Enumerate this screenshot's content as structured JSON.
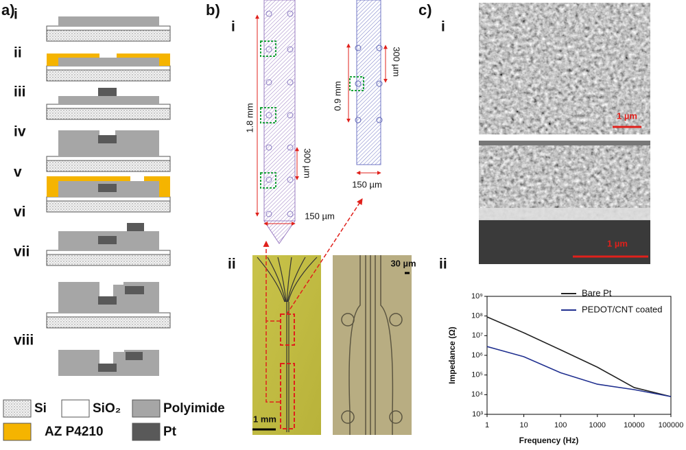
{
  "panel_a": {
    "label": "a)",
    "steps": [
      "i",
      "ii",
      "iii",
      "iv",
      "v",
      "vi",
      "vii",
      "viii"
    ],
    "legend": [
      "Si",
      "SiO₂",
      "Polyimide",
      "AZ P4210",
      "Pt"
    ]
  },
  "panel_b": {
    "label": "b)",
    "sub_i": "i",
    "dims_long": {
      "length": "1.8 mm",
      "pitch": "300 µm",
      "width": "150 µm"
    },
    "dims_short": {
      "length": "0.9 mm",
      "pitch": "300 µm",
      "width": "150 µm"
    },
    "sub_ii": "ii",
    "scale_left": "1 mm",
    "scale_right": "30 µm"
  },
  "panel_c": {
    "label": "c)",
    "sub_i": "i",
    "scale_top": "1 µm",
    "scale_bottom": "1 µm",
    "sub_ii": "ii"
  },
  "chart_data": {
    "type": "line",
    "xlabel": "Frequency (Hz)",
    "ylabel": "Impedance (Ω)",
    "x": [
      1,
      10,
      100,
      1000,
      10000,
      100000
    ],
    "series": [
      {
        "name": "Bare Pt",
        "color": "#222222",
        "values": [
          90000000,
          14000000,
          1900000,
          250000,
          23000,
          8000
        ]
      },
      {
        "name": "PEDOT/CNT coated",
        "color": "#1f2f8f",
        "values": [
          2800000,
          850000,
          130000,
          34000,
          18000,
          8000
        ]
      }
    ],
    "xlim": [
      1,
      100000
    ],
    "ylim": [
      1000,
      1000000000
    ],
    "log_x": true,
    "log_y": true,
    "xticks": [
      1,
      10,
      100,
      1000,
      10000,
      100000
    ],
    "yticks": [
      {
        "value": 1000,
        "label": "10³"
      },
      {
        "value": 10000,
        "label": "10⁴"
      },
      {
        "value": 100000,
        "label": "10⁵"
      },
      {
        "value": 1000000,
        "label": "10⁶"
      },
      {
        "value": 10000000,
        "label": "10⁷"
      },
      {
        "value": 100000000,
        "label": "10⁸"
      },
      {
        "value": 1000000000,
        "label": "10⁹"
      }
    ],
    "legend": "upper right"
  }
}
